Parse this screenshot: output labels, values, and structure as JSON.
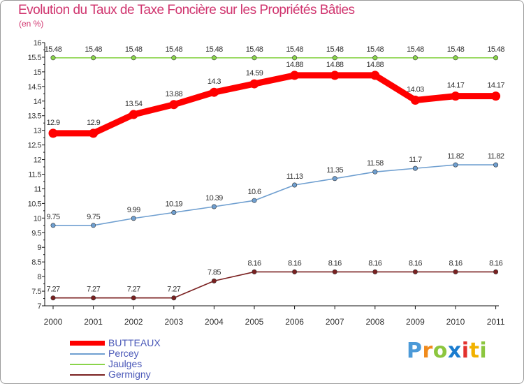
{
  "chart_data": {
    "type": "line",
    "title": "Evolution du Taux de Taxe Foncière sur les Propriétés Bâties",
    "subtitle": "(en %)",
    "xlabel": "",
    "ylabel": "",
    "categories": [
      "2000",
      "2001",
      "2002",
      "2003",
      "2004",
      "2005",
      "2006",
      "2007",
      "2008",
      "2009",
      "2010",
      "2011"
    ],
    "ylim": [
      7,
      16
    ],
    "yticks": [
      "7",
      "7.5",
      "8",
      "8.5",
      "9",
      "9.5",
      "10",
      "10.5",
      "11",
      "11.5",
      "12",
      "12.5",
      "13",
      "13.5",
      "14",
      "14.5",
      "15",
      "15.5",
      "16"
    ],
    "grid": false,
    "legend_position": "bottom-left",
    "series": [
      {
        "name": "BUTTEAUX",
        "color": "#ff0000",
        "values": [
          12.9,
          12.9,
          13.54,
          13.88,
          14.3,
          14.59,
          14.88,
          14.88,
          14.88,
          14.03,
          14.17,
          14.17
        ],
        "labels": [
          "12.9",
          "12.9",
          "13.54",
          "13.88",
          "14.3",
          "14.59",
          "14.88",
          "14.88",
          "14.88",
          "14.03",
          "14.17",
          "14.17"
        ]
      },
      {
        "name": "Percey",
        "color": "#6f9fd0",
        "values": [
          9.75,
          9.75,
          9.99,
          10.19,
          10.39,
          10.6,
          11.13,
          11.35,
          11.58,
          11.7,
          11.82,
          11.82
        ],
        "labels": [
          "9.75",
          "9.75",
          "9.99",
          "10.19",
          "10.39",
          "10.6",
          "11.13",
          "11.35",
          "11.58",
          "11.7",
          "11.82",
          "11.82"
        ]
      },
      {
        "name": "Jaulges",
        "color": "#8ad44a",
        "values": [
          15.48,
          15.48,
          15.48,
          15.48,
          15.48,
          15.48,
          15.48,
          15.48,
          15.48,
          15.48,
          15.48,
          15.48
        ],
        "labels": [
          "15.48",
          "15.48",
          "15.48",
          "15.48",
          "15.48",
          "15.48",
          "15.48",
          "15.48",
          "15.48",
          "15.48",
          "15.48",
          "15.48"
        ]
      },
      {
        "name": "Germigny",
        "color": "#7a2020",
        "values": [
          7.27,
          7.27,
          7.27,
          7.27,
          7.85,
          8.16,
          8.16,
          8.16,
          8.16,
          8.16,
          8.16,
          8.16
        ],
        "labels": [
          "7.27",
          "7.27",
          "7.27",
          "7.27",
          "7.85",
          "8.16",
          "8.16",
          "8.16",
          "8.16",
          "8.16",
          "8.16",
          "8.16"
        ]
      }
    ]
  },
  "brand": {
    "letters": [
      "P",
      "r",
      "o",
      "x",
      "i",
      "t",
      "i"
    ],
    "colors": [
      "#4c9ad8",
      "#f08a1c",
      "#8cc63f",
      "#1a7ccf",
      "#e2312d",
      "#f2b200",
      "#8cc63f"
    ]
  }
}
